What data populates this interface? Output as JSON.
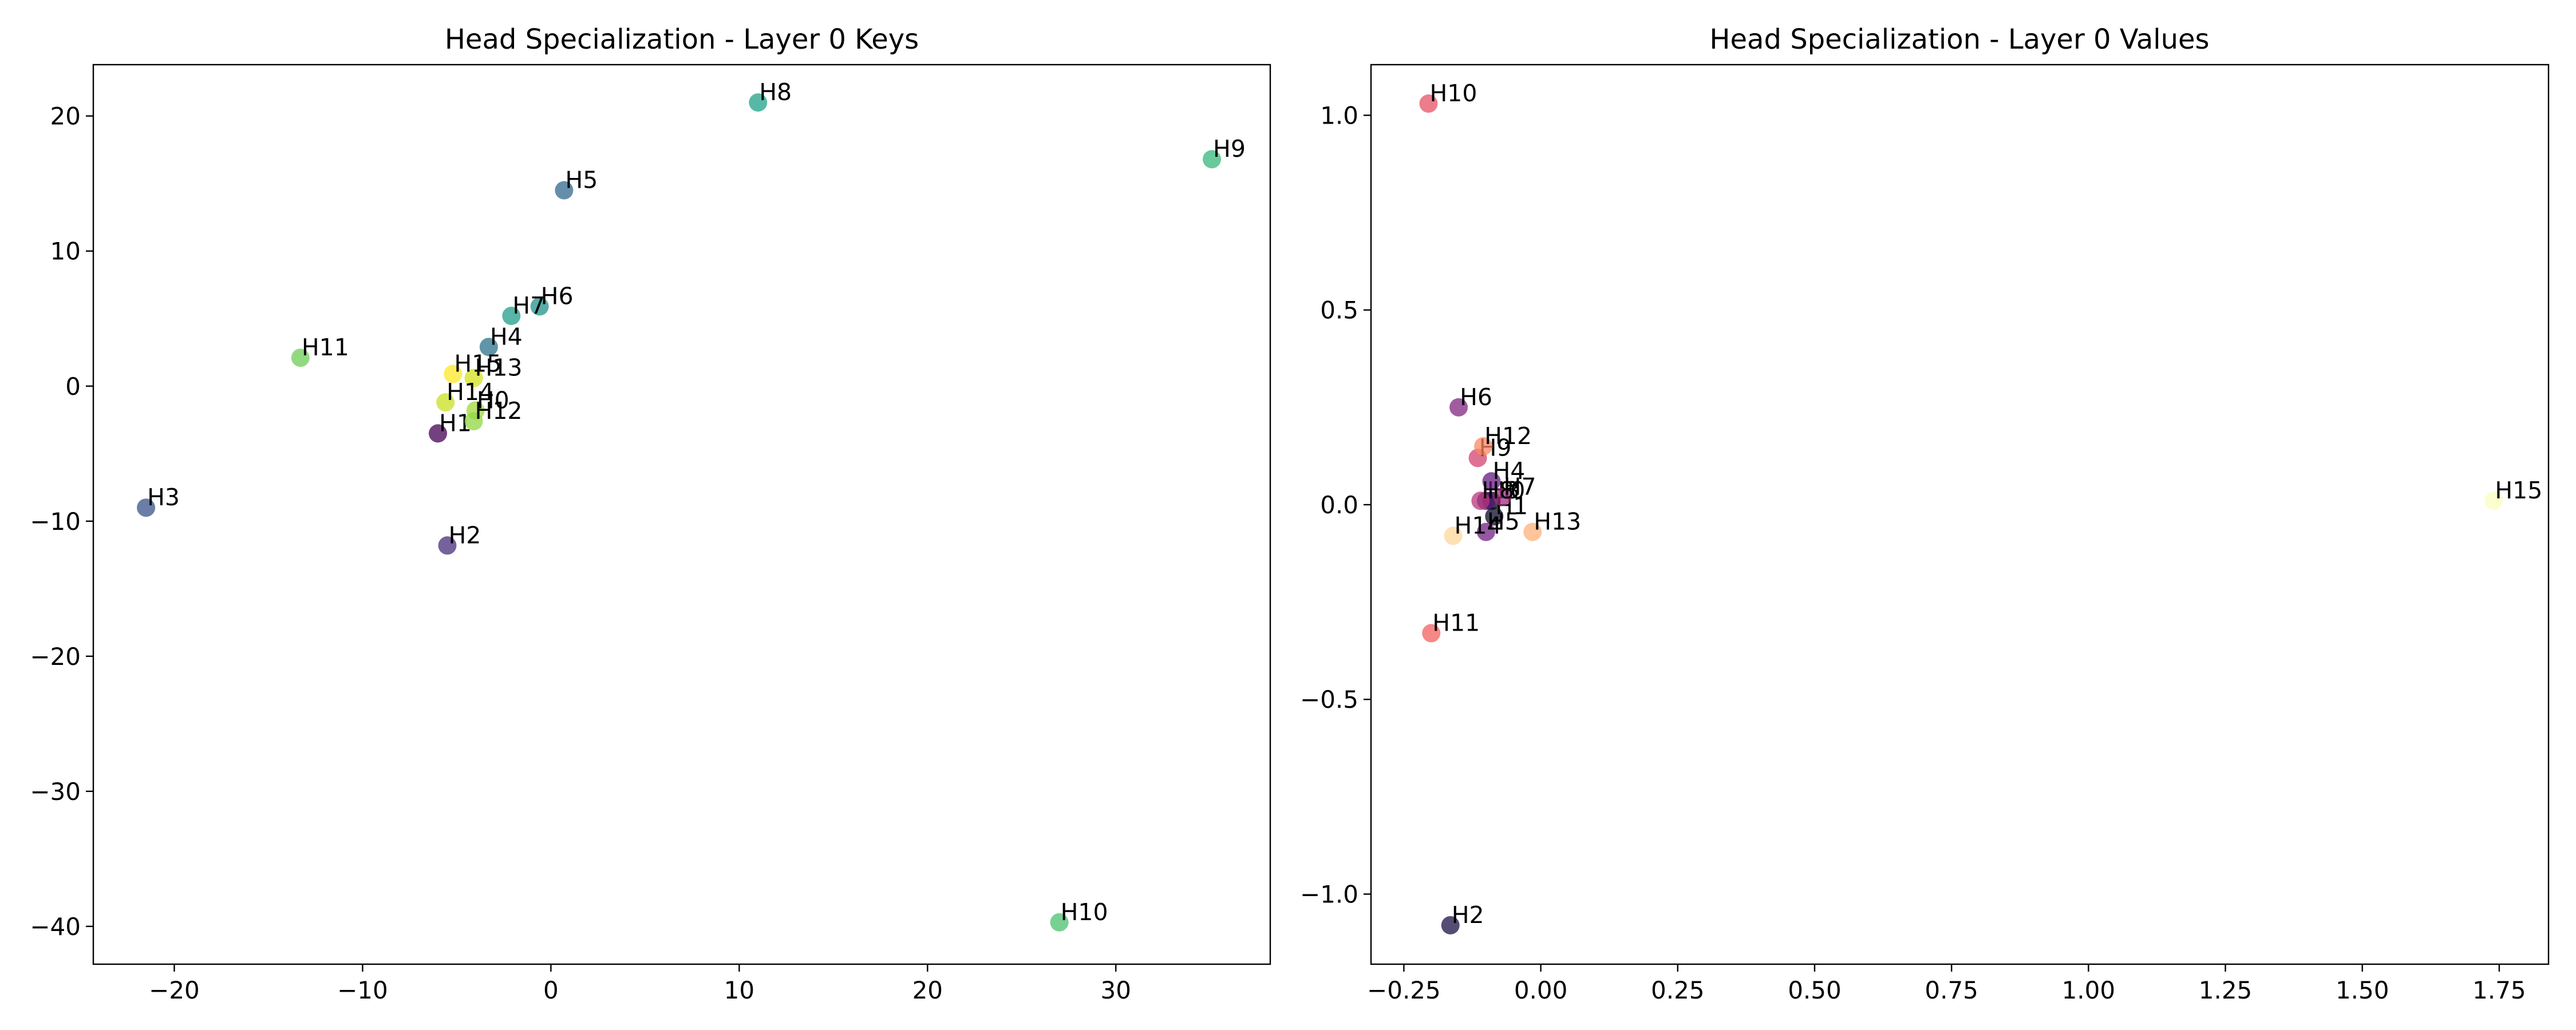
{
  "chart_data": [
    {
      "type": "scatter",
      "title": "Head Specialization - Layer 0 Keys",
      "xlabel": "",
      "ylabel": "",
      "xlim": [
        -24.3,
        38.2
      ],
      "ylim": [
        -42.8,
        23.8
      ],
      "xticks": [
        -20,
        -10,
        0,
        10,
        20,
        30
      ],
      "xtick_labels": [
        "−20",
        "−10",
        "0",
        "10",
        "20",
        "30"
      ],
      "yticks": [
        -40,
        -30,
        -20,
        -10,
        0,
        10,
        20
      ],
      "ytick_labels": [
        "−40",
        "−30",
        "−20",
        "−10",
        "0",
        "10",
        "20"
      ],
      "grid": false,
      "legend": "none",
      "colormap": "viridis",
      "points": [
        {
          "label": "H0",
          "x": -4.0,
          "y": -1.8,
          "color": "#a0da39"
        },
        {
          "label": "H1",
          "x": -6.0,
          "y": -3.5,
          "color": "#440154"
        },
        {
          "label": "H2",
          "x": -5.5,
          "y": -11.8,
          "color": "#472d7b"
        },
        {
          "label": "H3",
          "x": -21.5,
          "y": -9.0,
          "color": "#3b528b"
        },
        {
          "label": "H4",
          "x": -3.3,
          "y": 2.9,
          "color": "#2c728e"
        },
        {
          "label": "H5",
          "x": 0.7,
          "y": 14.5,
          "color": "#31688e"
        },
        {
          "label": "H6",
          "x": -0.6,
          "y": 5.9,
          "color": "#21918c"
        },
        {
          "label": "H7",
          "x": -2.1,
          "y": 5.2,
          "color": "#1f9e89"
        },
        {
          "label": "H8",
          "x": 11.0,
          "y": 21.0,
          "color": "#1fa187"
        },
        {
          "label": "H9",
          "x": 35.1,
          "y": 16.8,
          "color": "#35b779"
        },
        {
          "label": "H10",
          "x": 27.0,
          "y": -39.7,
          "color": "#4ac16d"
        },
        {
          "label": "H11",
          "x": -13.3,
          "y": 2.1,
          "color": "#6ece58"
        },
        {
          "label": "H12",
          "x": -4.1,
          "y": -2.6,
          "color": "#90d743"
        },
        {
          "label": "H13",
          "x": -4.1,
          "y": 0.6,
          "color": "#d2e21b"
        },
        {
          "label": "H14",
          "x": -5.6,
          "y": -1.2,
          "color": "#c8e020"
        },
        {
          "label": "H15",
          "x": -5.2,
          "y": 0.9,
          "color": "#fde725"
        }
      ]
    },
    {
      "type": "scatter",
      "title": "Head Specialization - Layer 0 Values",
      "xlabel": "",
      "ylabel": "",
      "xlim": [
        -0.31,
        1.84
      ],
      "ylim": [
        -1.18,
        1.13
      ],
      "xticks": [
        -0.25,
        0.0,
        0.25,
        0.5,
        0.75,
        1.0,
        1.25,
        1.5,
        1.75
      ],
      "xtick_labels": [
        "−0.25",
        "0.00",
        "0.25",
        "0.50",
        "0.75",
        "1.00",
        "1.25",
        "1.50",
        "1.75"
      ],
      "yticks": [
        -1.0,
        -0.5,
        0.0,
        0.5,
        1.0
      ],
      "ytick_labels": [
        "−1.0",
        "−0.5",
        "0.0",
        "0.5",
        "1.0"
      ],
      "grid": false,
      "legend": "none",
      "colormap": "magma",
      "points": [
        {
          "label": "H0",
          "x": -0.09,
          "y": 0.01,
          "color": "#000004"
        },
        {
          "label": "H1",
          "x": -0.085,
          "y": -0.03,
          "color": "#0b0924"
        },
        {
          "label": "H2",
          "x": -0.165,
          "y": -1.08,
          "color": "#1d1147"
        },
        {
          "label": "H3",
          "x": -0.1,
          "y": 0.01,
          "color": "#51127c"
        },
        {
          "label": "H4",
          "x": -0.09,
          "y": 0.06,
          "color": "#641a80"
        },
        {
          "label": "H5",
          "x": -0.1,
          "y": -0.07,
          "color": "#721f81"
        },
        {
          "label": "H6",
          "x": -0.15,
          "y": 0.25,
          "color": "#822681"
        },
        {
          "label": "H7",
          "x": -0.07,
          "y": 0.02,
          "color": "#9c2e7f"
        },
        {
          "label": "H8",
          "x": -0.11,
          "y": 0.01,
          "color": "#b73779"
        },
        {
          "label": "H9",
          "x": -0.115,
          "y": 0.12,
          "color": "#d3436e"
        },
        {
          "label": "H10",
          "x": -0.205,
          "y": 1.03,
          "color": "#e75263"
        },
        {
          "label": "H11",
          "x": -0.2,
          "y": -0.33,
          "color": "#f1605d"
        },
        {
          "label": "H12",
          "x": -0.105,
          "y": 0.15,
          "color": "#fb8761"
        },
        {
          "label": "H13",
          "x": -0.015,
          "y": -0.07,
          "color": "#feb078"
        },
        {
          "label": "H14",
          "x": -0.16,
          "y": -0.08,
          "color": "#fed799"
        },
        {
          "label": "H15",
          "x": 1.74,
          "y": 0.01,
          "color": "#fcfdbf"
        }
      ]
    }
  ]
}
